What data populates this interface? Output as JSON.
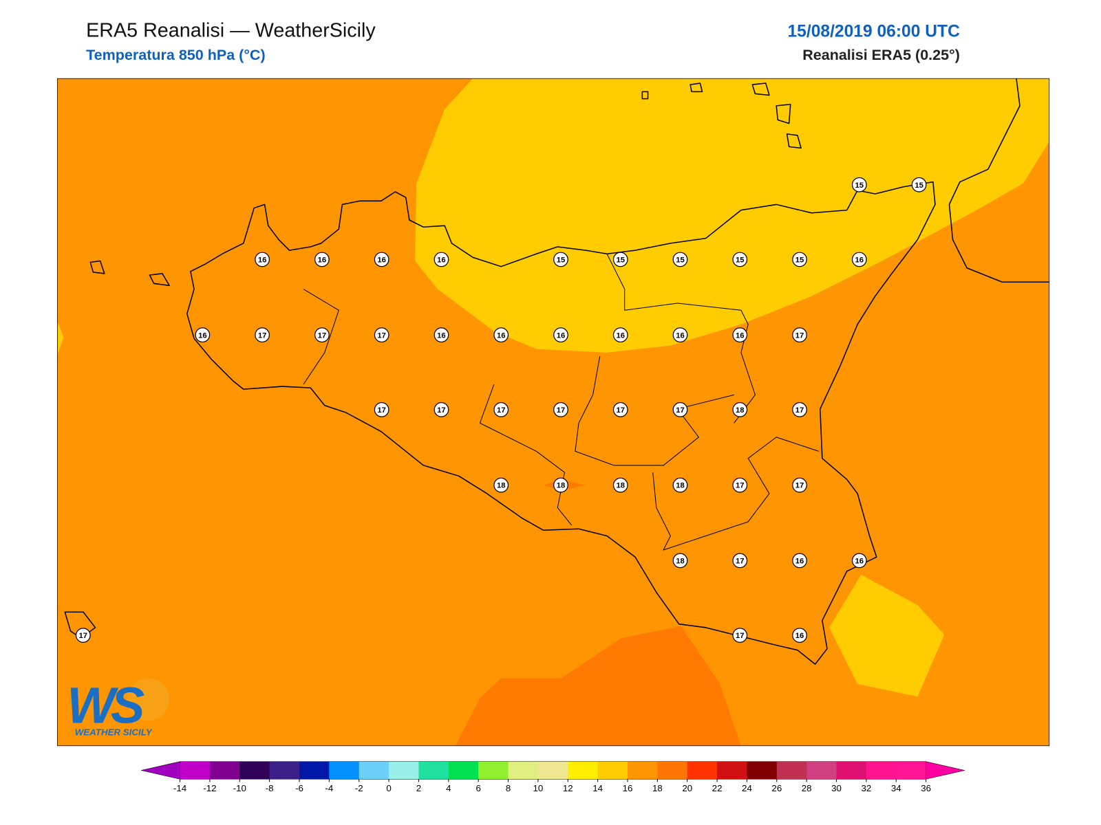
{
  "header": {
    "title": "ERA5 Reanalisi — WeatherSicily",
    "subtitle": "Temperatura 850 hPa (°C)",
    "datetime": "15/08/2019 06:00 UTC",
    "source": "Reanalisi ERA5 (0.25°)"
  },
  "map": {
    "background": "#ff9500",
    "fields": [
      {
        "color": "#ffcc00"
      },
      {
        "color": "#ff7a00"
      }
    ]
  },
  "stations": [
    15,
    15,
    16,
    16,
    16,
    16,
    15,
    15,
    15,
    15,
    15,
    16,
    16,
    17,
    17,
    17,
    16,
    16,
    16,
    16,
    16,
    16,
    17,
    17,
    17,
    17,
    17,
    17,
    17,
    18,
    17,
    18,
    18,
    18,
    18,
    17,
    17,
    18,
    17,
    16,
    16,
    17,
    17,
    16
  ],
  "colorbar": {
    "ticks": [
      -14,
      -12,
      -10,
      -8,
      -6,
      -4,
      -2,
      0,
      2,
      4,
      6,
      8,
      10,
      12,
      14,
      16,
      18,
      20,
      22,
      24,
      26,
      28,
      30,
      32,
      34,
      36
    ],
    "colors": [
      "#c000c8",
      "#800090",
      "#300058",
      "#3c2088",
      "#0018a8",
      "#0090ff",
      "#6cd0f8",
      "#98f0e8",
      "#20e0a0",
      "#00e050",
      "#90f030",
      "#e0f080",
      "#f0e890",
      "#ffee00",
      "#ffcc00",
      "#ff9500",
      "#ff7700",
      "#ff3300",
      "#d01010",
      "#800000",
      "#c03050",
      "#d04080",
      "#e01070",
      "#ff1490",
      "#ff1493"
    ],
    "under": "#a000c0",
    "over": "#ff00a0"
  },
  "logo": {
    "mark": "WS",
    "caption": "WEATHER SICILY"
  }
}
